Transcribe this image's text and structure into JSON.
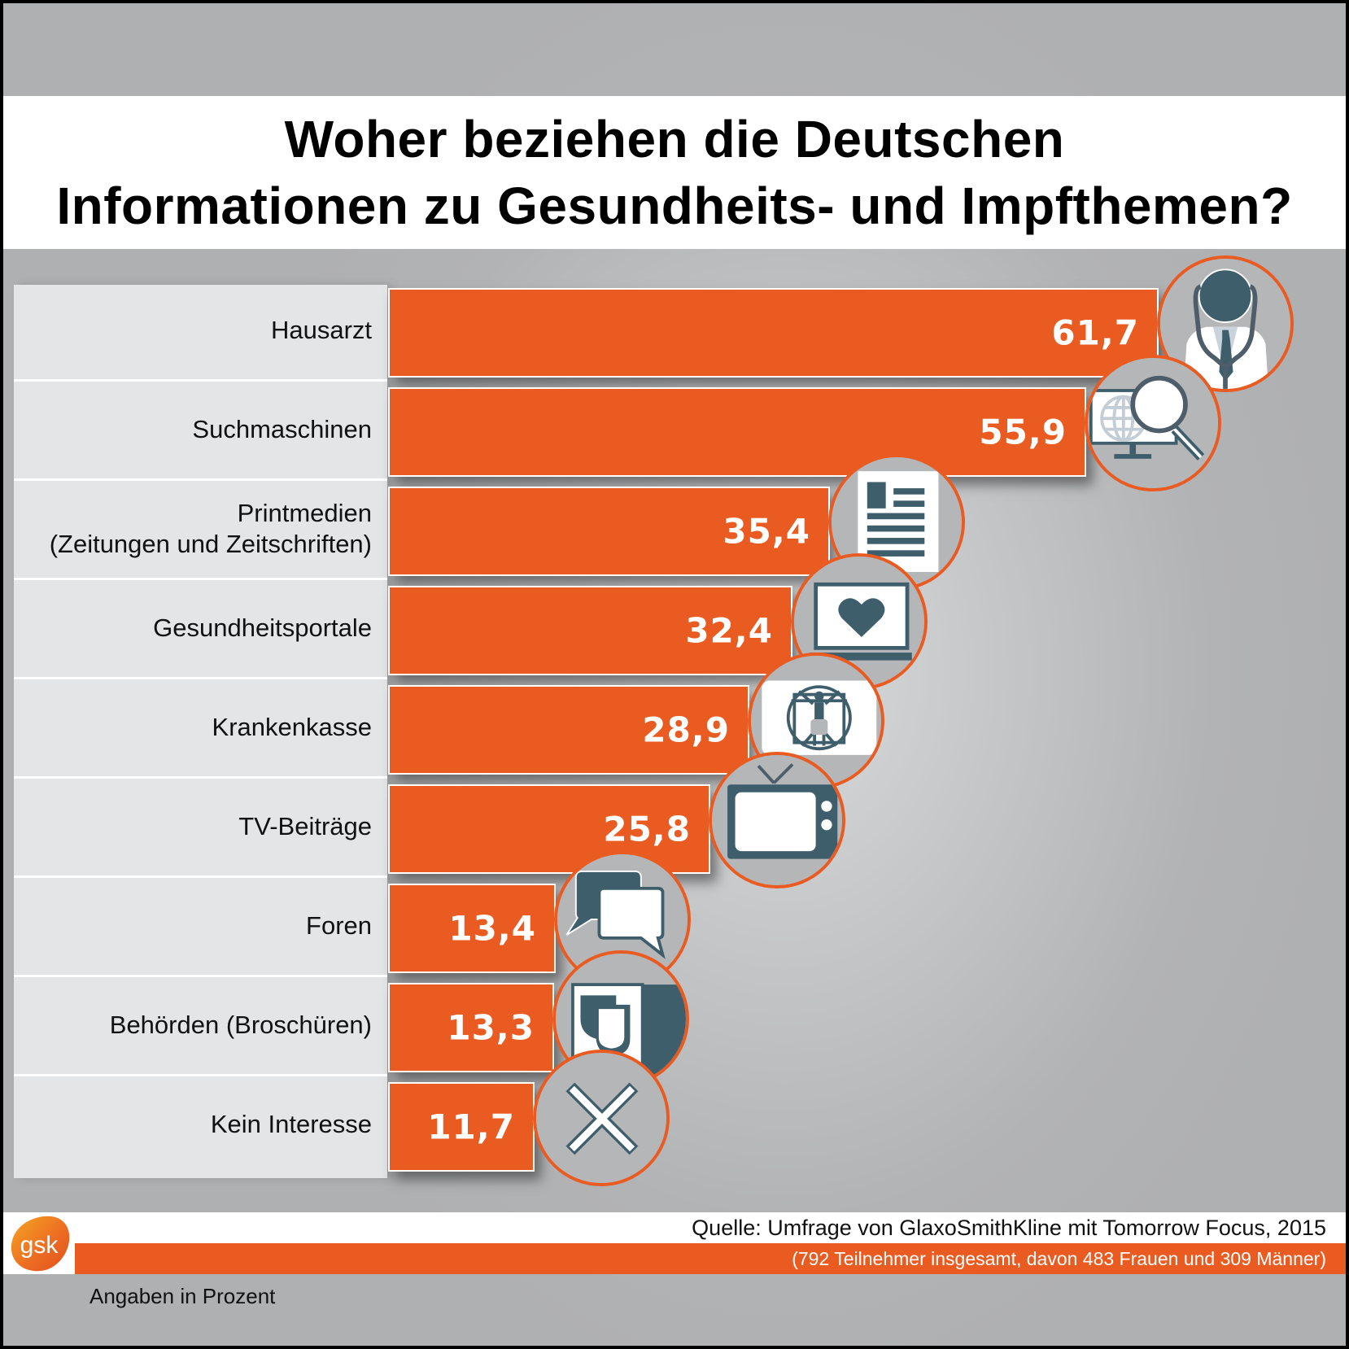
{
  "title": {
    "line1": "Woher beziehen die Deutschen",
    "line2": "Informationen zu Gesundheits- und Impfthemen?"
  },
  "chart_data": {
    "type": "bar",
    "orientation": "horizontal",
    "title": "Woher beziehen die Deutschen Informationen zu Gesundheits- und Impfthemen?",
    "xlabel": "",
    "ylabel": "",
    "unit_note": "Angaben in Prozent",
    "xlim": [
      0,
      61.7
    ],
    "grid": false,
    "categories": [
      {
        "label_lines": [
          "Hausarzt"
        ],
        "icon": "doctor-icon"
      },
      {
        "label_lines": [
          "Suchmaschinen"
        ],
        "icon": "search-monitor-icon"
      },
      {
        "label_lines": [
          "Printmedien",
          "(Zeitungen und Zeitschriften)"
        ],
        "icon": "newspaper-icon"
      },
      {
        "label_lines": [
          "Gesundheitsportale"
        ],
        "icon": "laptop-heart-icon"
      },
      {
        "label_lines": [
          "Krankenkasse"
        ],
        "icon": "vitruvian-man-icon"
      },
      {
        "label_lines": [
          "TV-Beiträge"
        ],
        "icon": "tv-icon"
      },
      {
        "label_lines": [
          "Foren"
        ],
        "icon": "chat-bubbles-icon"
      },
      {
        "label_lines": [
          "Behörden (Broschüren)"
        ],
        "icon": "brochure-shield-icon"
      },
      {
        "label_lines": [
          "Kein Interesse"
        ],
        "icon": "x-cross-icon"
      }
    ],
    "values": [
      61.7,
      55.9,
      35.4,
      32.4,
      28.9,
      25.8,
      13.4,
      13.3,
      11.7
    ],
    "value_labels": [
      "61,7",
      "55,9",
      "35,4",
      "32,4",
      "28,9",
      "25,8",
      "13,4",
      "13,3",
      "11,7"
    ]
  },
  "footer": {
    "source": "Quelle: Umfrage von GlaxoSmithKline mit Tomorrow Focus, 2015",
    "participants": "(792 Teilnehmer insgesamt, davon 483 Frauen und 309 Männer)",
    "unit_note": "Angaben in Prozent",
    "logo_text": "gsk"
  },
  "colors": {
    "bar": "#e95b21",
    "icon_dark": "#3f5e6c",
    "icon_circle": "#b5b6b8",
    "label_panel": "#e4e5e7",
    "background": "#b2b3b5"
  }
}
